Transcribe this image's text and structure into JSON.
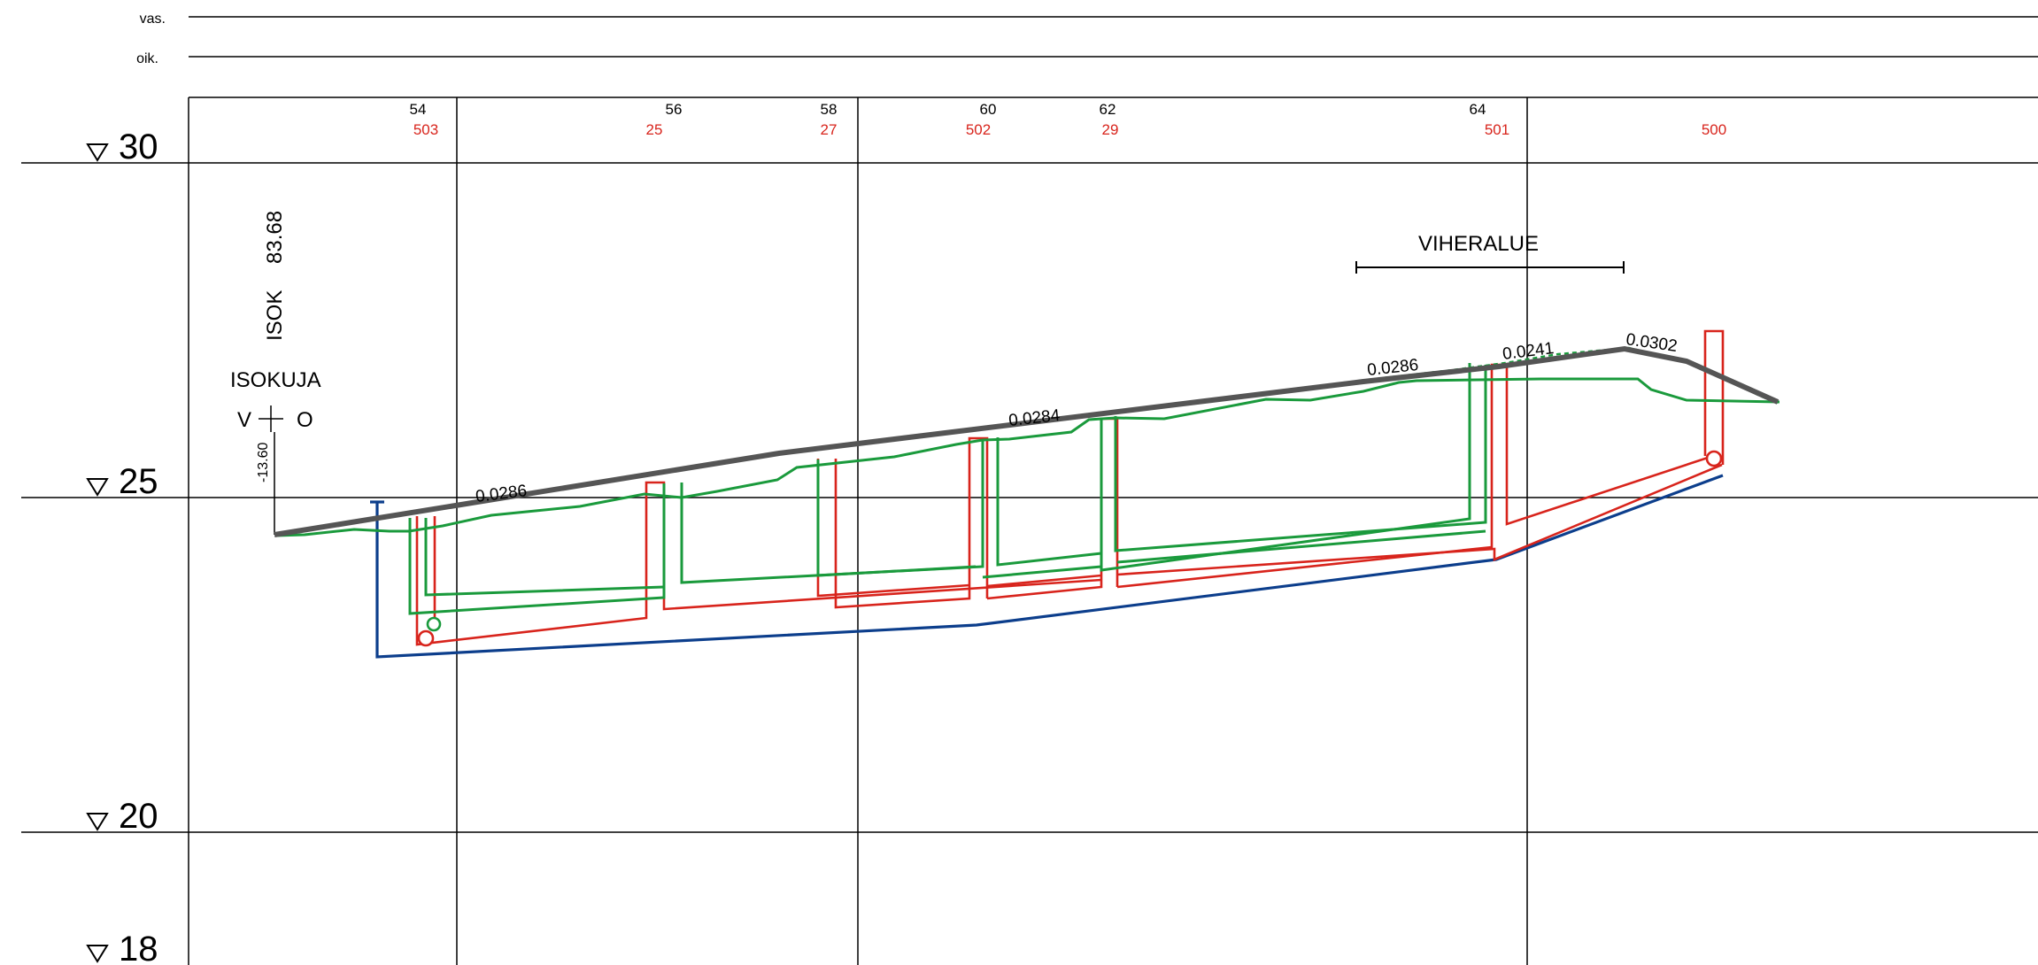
{
  "rows": {
    "left_label": "vas.",
    "right_label": "oik."
  },
  "levels": [
    "30",
    "25",
    "20",
    "18"
  ],
  "stations": [
    "54",
    "56",
    "58",
    "60",
    "62",
    "64"
  ],
  "wells": [
    "503",
    "25",
    "27",
    "502",
    "29",
    "501",
    "500"
  ],
  "street": {
    "name": "ISOKUJA",
    "code": "ISOK",
    "chainage": "83.68",
    "side_left": "V",
    "side_right": "O",
    "offset": "-13.60"
  },
  "zone_label": "VIHERALUE",
  "grades": [
    "0.0286",
    "0.0284",
    "0.0286",
    "0.0241",
    "0.0302"
  ],
  "colors": {
    "ground": "#555555",
    "storm_sewer": "#d8241c",
    "waste_sewer": "#1a9a3c",
    "water_main": "#0c3e8c"
  }
}
